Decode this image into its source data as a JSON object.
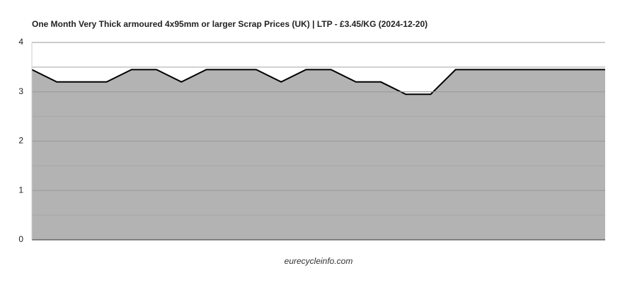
{
  "chart_data": {
    "type": "area",
    "title": "One Month Very Thick armoured 4x95mm or larger Scrap Prices (UK) | LTP - £3.45/KG (2024-12-20)",
    "footer": "eurecycleinfo.com",
    "categories": [
      null,
      null,
      null,
      null,
      null,
      null,
      null,
      null,
      null,
      null,
      null,
      null,
      null,
      null,
      null,
      null,
      null,
      null,
      null,
      null,
      null,
      null,
      null,
      null
    ],
    "values": [
      3.45,
      3.2,
      3.2,
      3.2,
      3.45,
      3.45,
      3.2,
      3.45,
      3.45,
      3.45,
      3.2,
      3.45,
      3.45,
      3.2,
      3.2,
      2.95,
      2.95,
      3.45,
      3.45,
      3.45,
      3.45,
      3.45,
      3.45,
      3.45
    ],
    "color": "#b3b3b3",
    "line_color": "#000000",
    "ylim": [
      0,
      4
    ],
    "yticks": [
      0,
      1,
      2,
      3,
      4
    ],
    "grid": true
  }
}
